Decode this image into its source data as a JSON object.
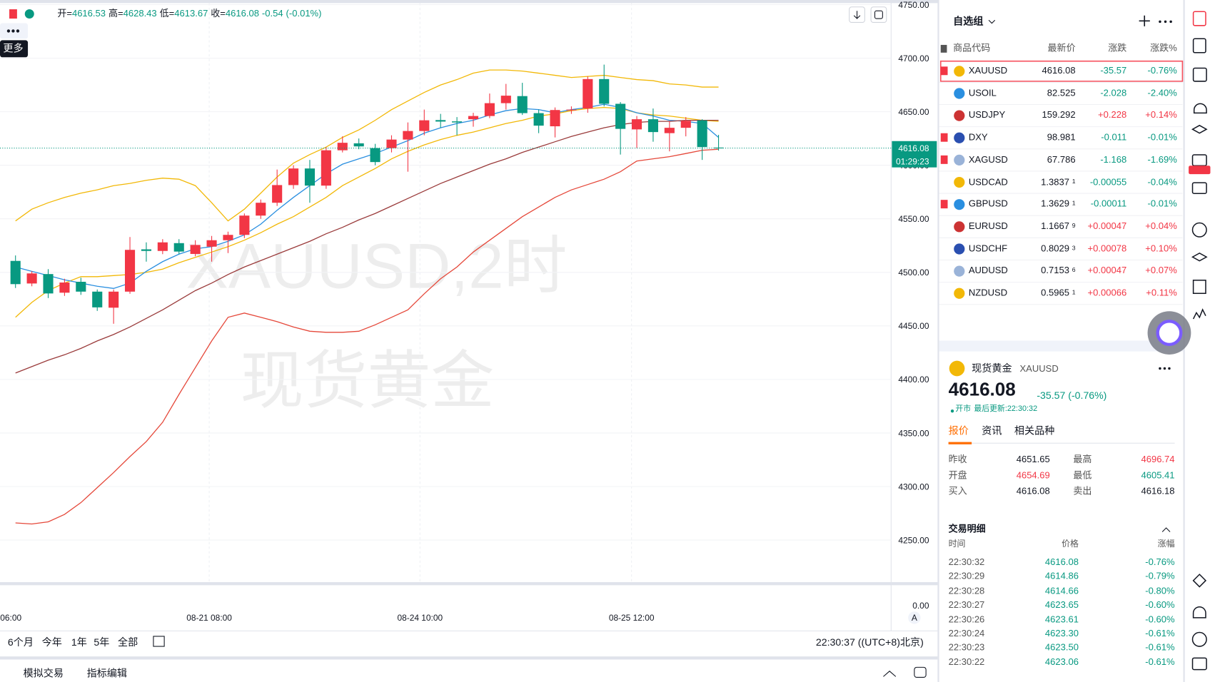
{
  "toolbar": {
    "ohlc": [
      {
        "label": "开=",
        "value": "4616.53"
      },
      {
        "label": "高=",
        "value": "4628.43"
      },
      {
        "label": "低=",
        "value": "4613.67"
      },
      {
        "label": "收=",
        "value": "4616.08"
      }
    ],
    "change": "-0.54",
    "change_pct": "(-0.01%)",
    "more": "更多"
  },
  "chart": {
    "type": "candlestick",
    "watermark": [
      "XAUUSD,2时",
      "现货黄金"
    ],
    "up_color": "#f23645",
    "down_color": "#089981",
    "grid": true,
    "ylim": [
      4210,
      4750
    ],
    "yticks": [
      {
        "value": 4750,
        "label": "4750.00"
      },
      {
        "value": 4700,
        "label": "4700.00"
      },
      {
        "value": 4650,
        "label": "4650.00"
      },
      {
        "value": 4600,
        "label": "4600.00"
      },
      {
        "value": 4550,
        "label": "4550.00"
      },
      {
        "value": 4500,
        "label": "4500.00"
      },
      {
        "value": 4450,
        "label": "4450.00"
      },
      {
        "value": 4400,
        "label": "4400.00"
      },
      {
        "value": 4350,
        "label": "4350.00"
      },
      {
        "value": 4300,
        "label": "4300.00"
      },
      {
        "value": 4250,
        "label": "4250.00"
      }
    ],
    "last_price": {
      "value": 4616.08,
      "label": "4616.08"
    },
    "countdown": "01:29:23",
    "volume_tick": "0.00",
    "x_labels": [
      "06:00",
      "08-21 08:00",
      "08-24 10:00",
      "08-25 12:00"
    ],
    "candles": [
      [
        4510.7,
        4515.8,
        4485.4,
        4489
      ],
      [
        4489.6,
        4501,
        4487,
        4499
      ],
      [
        4498.4,
        4503,
        4476,
        4480.3
      ],
      [
        4481,
        4494,
        4478,
        4490.5
      ],
      [
        4491.2,
        4495,
        4479,
        4482
      ],
      [
        4482,
        4484,
        4464,
        4467.3
      ],
      [
        4467,
        4484,
        4452,
        4482
      ],
      [
        4482,
        4533,
        4480,
        4521
      ],
      [
        4521.5,
        4528,
        4510,
        4520
      ],
      [
        4520,
        4531,
        4517,
        4528
      ],
      [
        4527.3,
        4531,
        4517,
        4519.4
      ],
      [
        4517.2,
        4530,
        4515,
        4525.6
      ],
      [
        4524,
        4534,
        4510,
        4530
      ],
      [
        4530,
        4538,
        4518,
        4535
      ],
      [
        4535,
        4555,
        4532,
        4553
      ],
      [
        4553,
        4568,
        4550,
        4565
      ],
      [
        4565,
        4596,
        4562,
        4581.5
      ],
      [
        4581.5,
        4600,
        4578,
        4597
      ],
      [
        4597,
        4605,
        4565,
        4581
      ],
      [
        4581,
        4617,
        4578,
        4614
      ],
      [
        4614,
        4627,
        4612,
        4621
      ],
      [
        4620.5,
        4625,
        4615,
        4617.6
      ],
      [
        4616,
        4620,
        4600,
        4603
      ],
      [
        4616,
        4628,
        4612,
        4624
      ],
      [
        4624,
        4640,
        4594,
        4632
      ],
      [
        4632,
        4652,
        4628,
        4642
      ],
      [
        4642.2,
        4648,
        4635,
        4640.8
      ],
      [
        4641,
        4645,
        4628,
        4640
      ],
      [
        4643,
        4649,
        4636,
        4646
      ],
      [
        4646,
        4667,
        4644,
        4658
      ],
      [
        4658,
        4676,
        4652,
        4665
      ],
      [
        4664.6,
        4677,
        4647,
        4648.7
      ],
      [
        4648.7,
        4652,
        4630,
        4637
      ],
      [
        4636.4,
        4654,
        4626,
        4651.6
      ],
      [
        4651.5,
        4655,
        4648,
        4652
      ],
      [
        4653,
        4683,
        4649,
        4680.5
      ],
      [
        4680.5,
        4694,
        4655,
        4657.4
      ],
      [
        4657.4,
        4659,
        4610,
        4634
      ],
      [
        4633.5,
        4646,
        4616,
        4643
      ],
      [
        4643,
        4653,
        4622,
        4631
      ],
      [
        4630,
        4641,
        4613,
        4635
      ],
      [
        4635,
        4645,
        4627,
        4641.5
      ],
      [
        4642,
        4643,
        4605,
        4617
      ],
      [
        4616.53,
        4628.43,
        4613.67,
        4616.08
      ]
    ],
    "lines": [
      {
        "color": "#f2b807",
        "values": [
          4548,
          4559,
          4565,
          4570,
          4574,
          4577,
          4581,
          4583,
          4586,
          4588,
          4587,
          4581,
          4565,
          4548,
          4559,
          4574,
          4589,
          4602,
          4610,
          4617,
          4626,
          4633,
          4642,
          4652,
          4660,
          4668,
          4675,
          4680,
          4686,
          4689,
          4689,
          4688,
          4686,
          4684,
          4682,
          4683,
          4684,
          4682,
          4680,
          4679,
          4676,
          4675,
          4673,
          4673
        ]
      },
      {
        "color": "#f2b807",
        "values": [
          4458,
          4472,
          4483,
          4490,
          4496,
          4496,
          4497,
          4498,
          4500,
          4503,
          4509,
          4514,
          4519,
          4524,
          4530,
          4537,
          4545,
          4552,
          4561,
          4570,
          4581,
          4589,
          4597,
          4606,
          4613,
          4619,
          4624,
          4628,
          4631,
          4635,
          4639,
          4642,
          4646,
          4648,
          4651,
          4653,
          4654,
          4653,
          4649,
          4647,
          4646,
          4644,
          4642,
          4641
        ]
      },
      {
        "color": "#2a8fe0",
        "values": [
          4505,
          4501,
          4497,
          4493,
          4490,
          4487,
          4485,
          4490,
          4501,
          4510,
          4517,
          4522,
          4524,
          4529,
          4535,
          4545,
          4558,
          4570,
          4581,
          4592,
          4601,
          4606,
          4611,
          4617,
          4623,
          4630,
          4635,
          4639,
          4642,
          4647,
          4651,
          4653,
          4652,
          4649,
          4652,
          4654,
          4657,
          4654,
          4649,
          4646,
          4642,
          4641,
          4639,
          4626
        ]
      },
      {
        "color": "#9a3b3b",
        "values": [
          4406,
          4412,
          4418,
          4423,
          4429,
          4436,
          4442,
          4449,
          4457,
          4465,
          4474,
          4483,
          4490,
          4498,
          4505,
          4511,
          4517,
          4523,
          4529,
          4536,
          4542,
          4549,
          4555,
          4562,
          4569,
          4576,
          4583,
          4589,
          4595,
          4601,
          4606,
          4612,
          4617,
          4622,
          4627,
          4631,
          4635,
          4638,
          4640,
          4641,
          4641,
          4642,
          4642,
          4642
        ]
      },
      {
        "color": "#e5483a",
        "values": [
          4266,
          4265,
          4267,
          4274,
          4285,
          4299,
          4313,
          4328,
          4342,
          4360,
          4386,
          4411,
          4436,
          4458,
          4462,
          4458,
          4454,
          4449,
          4445,
          4444,
          4444,
          4445,
          4451,
          4458,
          4465,
          4480,
          4494,
          4505,
          4519,
          4530,
          4541,
          4552,
          4561,
          4570,
          4577,
          4582,
          4587,
          4594,
          4604,
          4606,
          4608,
          4611,
          4614,
          4615
        ]
      }
    ]
  },
  "range_bar": {
    "buttons": [
      "6个月",
      "今年",
      "1年",
      "5年",
      "全部"
    ],
    "time": "22:30:37 ((UTC+8)北京)",
    "auto": "A"
  },
  "footer": [
    "模拟交易",
    "指标编辑"
  ],
  "watchlist": {
    "title": "自选组",
    "columns": [
      "商品代码",
      "最新价",
      "涨跌",
      "涨跌%"
    ],
    "rows": [
      {
        "symbol": "XAUUSD",
        "price": "4616.08",
        "change": "-35.57",
        "change_pct": "-0.76%",
        "flag": true
      },
      {
        "symbol": "USOIL",
        "price": "82.525",
        "change": "-2.028",
        "change_pct": "-2.40%",
        "flag": false
      },
      {
        "symbol": "USDJPY",
        "price": "159.292",
        "change": "+0.228",
        "change_pct": "+0.14%",
        "flag": false
      },
      {
        "symbol": "DXY",
        "price": "98.981",
        "change": "-0.011",
        "change_pct": "-0.01%",
        "flag": true
      },
      {
        "symbol": "XAGUSD",
        "price": "67.786",
        "change": "-1.168",
        "change_pct": "-1.69%",
        "flag": true
      },
      {
        "symbol": "USDCAD",
        "price": "1.3837",
        "pip": "1",
        "change": "-0.00055",
        "change_pct": "-0.04%",
        "flag": false
      },
      {
        "symbol": "GBPUSD",
        "price": "1.3629",
        "pip": "1",
        "change": "-0.00011",
        "change_pct": "-0.01%",
        "flag": true
      },
      {
        "symbol": "EURUSD",
        "price": "1.1667",
        "pip": "9",
        "change": "+0.00047",
        "change_pct": "+0.04%",
        "flag": false
      },
      {
        "symbol": "USDCHF",
        "price": "0.8029",
        "pip": "3",
        "change": "+0.00078",
        "change_pct": "+0.10%",
        "flag": false
      },
      {
        "symbol": "AUDUSD",
        "price": "0.7153",
        "pip": "6",
        "change": "+0.00047",
        "change_pct": "+0.07%",
        "flag": false
      },
      {
        "symbol": "NZDUSD",
        "price": "0.5965",
        "pip": "1",
        "change": "+0.00066",
        "change_pct": "+0.11%",
        "flag": false
      }
    ]
  },
  "detail": {
    "name": "现货黄金",
    "symbol": "XAUUSD",
    "price": "4616.08",
    "change": "-35.57 (-0.76%)",
    "status": "开市",
    "updated": "最后更新:22:30:32",
    "tabs": [
      "报价",
      "资讯",
      "相关品种"
    ],
    "stats": [
      {
        "label": "昨收",
        "value": "4651.65"
      },
      {
        "label": "最高",
        "value": "4696.74"
      },
      {
        "label": "开盘",
        "value": "4654.69"
      },
      {
        "label": "最低",
        "value": "4605.41"
      },
      {
        "label": "买入",
        "value": "4616.08"
      },
      {
        "label": "卖出",
        "value": "4616.18"
      }
    ],
    "trades": {
      "title": "交易明细",
      "columns": [
        "时间",
        "价格",
        "涨幅"
      ],
      "rows": [
        [
          "22:30:32",
          "4616.08",
          "-0.76%"
        ],
        [
          "22:30:29",
          "4614.86",
          "-0.79%"
        ],
        [
          "22:30:28",
          "4614.66",
          "-0.80%"
        ],
        [
          "22:30:27",
          "4623.65",
          "-0.60%"
        ],
        [
          "22:30:26",
          "4623.61",
          "-0.60%"
        ],
        [
          "22:30:24",
          "4623.30",
          "-0.61%"
        ],
        [
          "22:30:23",
          "4623.50",
          "-0.61%"
        ],
        [
          "22:30:22",
          "4623.06",
          "-0.61%"
        ]
      ]
    }
  }
}
